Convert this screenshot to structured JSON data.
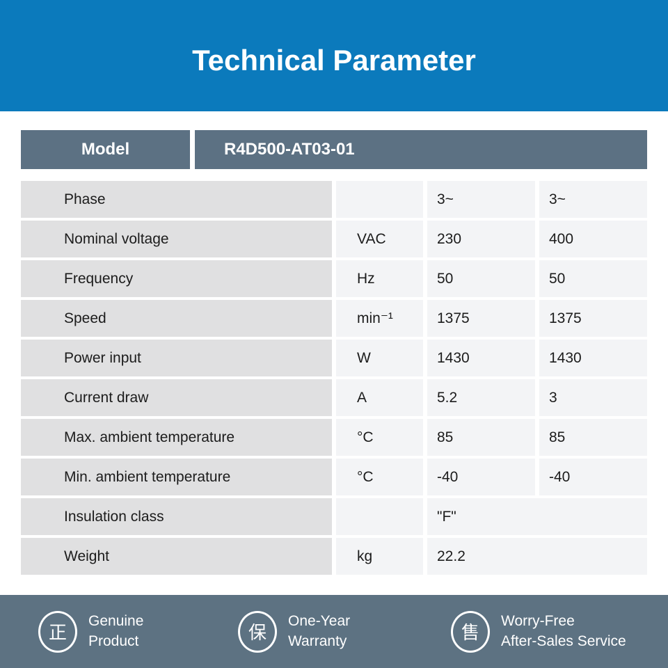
{
  "banner": {
    "title": "Technical Parameter"
  },
  "model_header": {
    "label": "Model",
    "value": "R4D500-AT03-01"
  },
  "table": {
    "rows": [
      {
        "label": "Phase",
        "unit": "",
        "v1": "3~",
        "v2": "3~",
        "merged": false
      },
      {
        "label": "Nominal voltage",
        "unit": "VAC",
        "v1": "230",
        "v2": "400",
        "merged": false
      },
      {
        "label": "Frequency",
        "unit": "Hz",
        "v1": "50",
        "v2": "50",
        "merged": false
      },
      {
        "label": "Speed",
        "unit": "min⁻¹",
        "v1": "1375",
        "v2": "1375",
        "merged": false
      },
      {
        "label": "Power input",
        "unit": "W",
        "v1": "1430",
        "v2": "1430",
        "merged": false
      },
      {
        "label": "Current draw",
        "unit": "A",
        "v1": "5.2",
        "v2": "3",
        "merged": false
      },
      {
        "label": "Max. ambient temperature",
        "unit": "°C",
        "v1": "85",
        "v2": "85",
        "merged": false
      },
      {
        "label": "Min. ambient temperature",
        "unit": "°C",
        "v1": "-40",
        "v2": "-40",
        "merged": false
      },
      {
        "label": "Insulation class",
        "unit": "",
        "v1": "\"F\"",
        "v2": "",
        "merged": true
      },
      {
        "label": "Weight",
        "unit": "kg",
        "v1": "22.2",
        "v2": "",
        "merged": true
      }
    ]
  },
  "footer": {
    "badges": [
      {
        "icon": "正",
        "line1": "Genuine",
        "line2": "Product"
      },
      {
        "icon": "保",
        "line1": "One-Year",
        "line2": "Warranty"
      },
      {
        "icon": "售",
        "line1": "Worry-Free",
        "line2": "After-Sales Service"
      }
    ]
  },
  "colors": {
    "banner_blue": "#0b7abc",
    "slate": "#5c7183",
    "footer_slate": "#5d7282",
    "label_cell": "#e0e0e1",
    "value_cell": "#f3f4f6"
  }
}
